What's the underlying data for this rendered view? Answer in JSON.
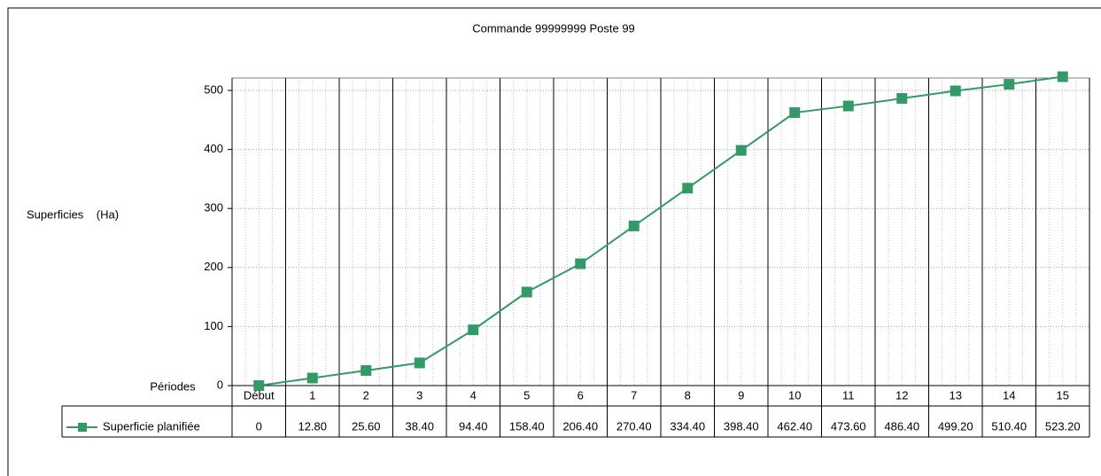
{
  "chart_data": {
    "type": "line",
    "title": "Commande 99999999 Poste 99",
    "y_label": "Superficies    (Ha)",
    "x_label": "Périodes",
    "categories": [
      "Début",
      "1",
      "2",
      "3",
      "4",
      "5",
      "6",
      "7",
      "8",
      "9",
      "10",
      "11",
      "12",
      "13",
      "14",
      "15"
    ],
    "series": [
      {
        "name": "Superficie planifiée",
        "color": "#339966",
        "values": [
          0,
          12.8,
          25.6,
          38.4,
          94.4,
          158.4,
          206.4,
          270.4,
          334.4,
          398.4,
          462.4,
          473.6,
          486.4,
          499.2,
          510.4,
          523.2
        ],
        "value_labels": [
          "0",
          "12.80",
          "25.60",
          "38.40",
          "94.40",
          "158.40",
          "206.40",
          "270.40",
          "334.40",
          "398.40",
          "462.40",
          "473.60",
          "486.40",
          "499.20",
          "510.40",
          "523.20"
        ]
      }
    ],
    "ylim": [
      0,
      521
    ],
    "yticks": [
      0,
      100,
      200,
      300,
      400,
      500
    ],
    "grid": true
  }
}
